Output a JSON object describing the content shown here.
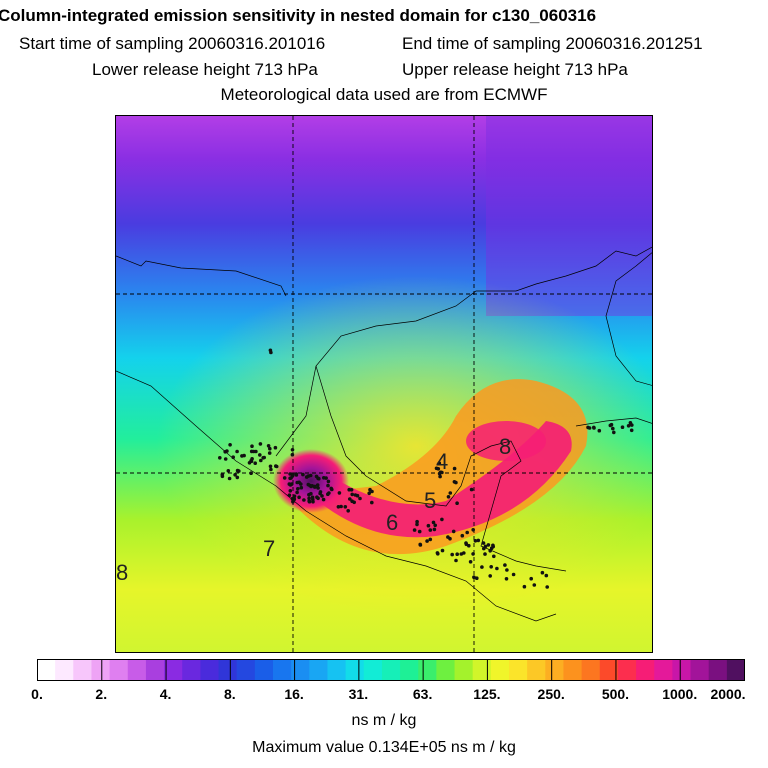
{
  "header": {
    "title": "Column-integrated emission sensitivity in nested domain for c130_060316",
    "start_label": "Start time of sampling 20060316.201016",
    "end_label": "End time of sampling 20060316.201251",
    "lower_label": "Lower release height  713 hPa",
    "upper_label": "Upper release height  713 hPa",
    "met_label": "Meteorological data used are from ECMWF"
  },
  "map": {
    "labels": [
      "4",
      "8",
      "5",
      "6",
      "7",
      "8"
    ]
  },
  "legend": {
    "ticks": [
      "0.",
      "2.",
      "4.",
      "8.",
      "16.",
      "31.",
      "63.",
      "125.",
      "250.",
      "500.",
      "1000.",
      "2000."
    ],
    "colors": [
      "#ffffff",
      "#fde9ff",
      "#f7c6fb",
      "#eea3f5",
      "#df7ff0",
      "#c85ce8",
      "#a93fdf",
      "#8a2be2",
      "#6a28df",
      "#4a2bdc",
      "#3036d8",
      "#2448e0",
      "#1a5ee8",
      "#1876ef",
      "#1a8ef2",
      "#19a6f3",
      "#16c2f2",
      "#12dce9",
      "#12ecd6",
      "#16efb8",
      "#1ef096",
      "#3aee6c",
      "#6ef040",
      "#a4f22c",
      "#d1f52a",
      "#f0f52a",
      "#fbe42a",
      "#fcc826",
      "#fcae22",
      "#fc921e",
      "#fc7620",
      "#fc4a2a",
      "#fc2e4e",
      "#f61d76",
      "#e4199a",
      "#c816a8",
      "#a2149a",
      "#7a1080",
      "#501060"
    ],
    "units": "ns m / kg",
    "max_value": "Maximum value  0.134E+05 ns m / kg"
  }
}
